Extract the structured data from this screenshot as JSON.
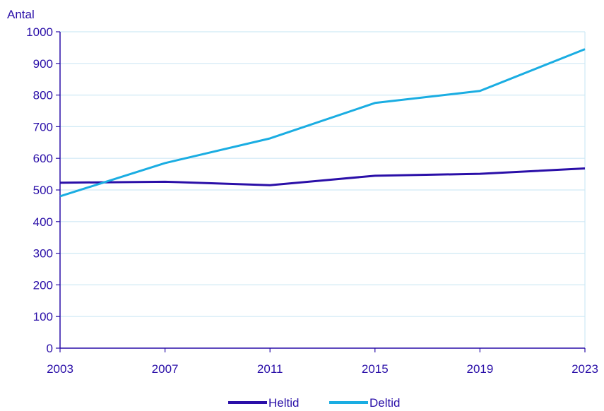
{
  "chart_data": {
    "type": "line",
    "ylabel": "Antal",
    "xlabel": "",
    "x": [
      2003,
      2007,
      2011,
      2015,
      2019,
      2023
    ],
    "ylim": [
      0,
      1000
    ],
    "yticks": [
      0,
      100,
      200,
      300,
      400,
      500,
      600,
      700,
      800,
      900,
      1000
    ],
    "xticks": [
      2003,
      2007,
      2011,
      2015,
      2019,
      2023
    ],
    "grid": true,
    "legend_position": "bottom",
    "series": [
      {
        "name": "Heltid",
        "color": "#2a0fa8",
        "values": [
          523,
          526,
          515,
          545,
          551,
          568
        ]
      },
      {
        "name": "Deltid",
        "color": "#1aade2",
        "values": [
          480,
          585,
          663,
          775,
          813,
          945
        ]
      }
    ]
  },
  "colors": {
    "text": "#2a0fa8",
    "grid": "#cfe9f5",
    "axis": "#2a0fa8"
  }
}
